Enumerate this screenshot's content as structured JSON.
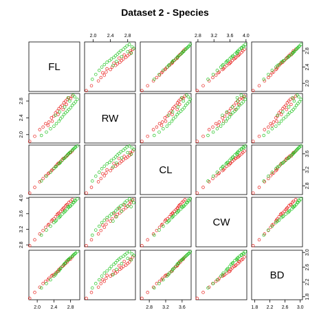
{
  "chart_data": {
    "type": "scatter",
    "chart_kind": "scatterplot-matrix",
    "title": "Dataset 2 - Species",
    "variables": [
      "FL",
      "RW",
      "CL",
      "CW",
      "BD"
    ],
    "grid": false,
    "legend": "none",
    "colors": {
      "species_1": "#e8201c",
      "species_2": "#22c422"
    },
    "axis_ranges": {
      "FL": [
        1.8,
        3.02
      ],
      "RW": [
        1.8,
        2.98
      ],
      "CL": [
        2.58,
        3.82
      ],
      "CW": [
        2.75,
        4.02
      ],
      "BD": [
        1.72,
        3.06
      ]
    },
    "ticks": {
      "FL": [
        2.0,
        2.4,
        2.8
      ],
      "RW": [
        2.0,
        2.4,
        2.8
      ],
      "CL": [
        2.8,
        3.2,
        3.6
      ],
      "CW": [
        2.8,
        3.2,
        3.6,
        4.0
      ],
      "BD": [
        1.8,
        2.2,
        2.6,
        3.0
      ]
    },
    "tick_labels": {
      "FL": [
        "2.0",
        "2.4",
        "2.8"
      ],
      "RW": [
        "2.0",
        "2.4",
        "2.8"
      ],
      "CL": [
        "2.8",
        "3.2",
        "3.6"
      ],
      "CW": [
        "2.8",
        "3.2",
        "3.6",
        "4.0"
      ],
      "BD": [
        "1.8",
        "2.2",
        "2.6",
        "3.0"
      ]
    },
    "series": [
      {
        "group": "species_1",
        "points": [
          [
            1.82,
            1.84,
            2.62,
            2.78,
            1.76
          ],
          [
            1.94,
            1.96,
            2.76,
            2.93,
            1.92
          ],
          [
            2.06,
            2.12,
            2.9,
            3.08,
            2.06
          ],
          [
            2.14,
            2.18,
            2.98,
            3.17,
            2.16
          ],
          [
            2.2,
            2.26,
            3.05,
            3.25,
            2.22
          ],
          [
            2.28,
            2.3,
            3.12,
            3.33,
            2.3
          ],
          [
            2.34,
            2.4,
            3.18,
            3.41,
            2.36
          ],
          [
            2.4,
            2.44,
            3.24,
            3.47,
            2.4
          ],
          [
            2.44,
            2.52,
            3.29,
            3.52,
            2.44
          ],
          [
            2.48,
            2.56,
            3.33,
            3.58,
            2.48
          ],
          [
            2.52,
            2.62,
            3.37,
            3.62,
            2.54
          ],
          [
            2.56,
            2.66,
            3.41,
            3.66,
            2.58
          ],
          [
            2.6,
            2.7,
            3.45,
            3.7,
            2.62
          ],
          [
            2.64,
            2.76,
            3.49,
            3.75,
            2.66
          ],
          [
            2.68,
            2.8,
            3.52,
            3.8,
            2.7
          ],
          [
            2.72,
            2.84,
            3.56,
            3.84,
            2.74
          ],
          [
            2.76,
            2.88,
            3.6,
            3.89,
            2.8
          ],
          [
            2.8,
            2.86,
            3.63,
            3.92,
            2.82
          ],
          [
            2.84,
            2.92,
            3.67,
            3.96,
            2.88
          ],
          [
            2.36,
            2.32,
            3.2,
            3.44,
            2.38
          ],
          [
            2.5,
            2.48,
            3.36,
            3.6,
            2.5
          ],
          [
            2.62,
            2.6,
            3.48,
            3.73,
            2.64
          ],
          [
            2.26,
            2.22,
            3.1,
            3.31,
            2.26
          ],
          [
            2.7,
            2.72,
            3.54,
            3.82,
            2.76
          ]
        ]
      },
      {
        "group": "species_2",
        "points": [
          [
            2.1,
            1.98,
            2.92,
            3.05,
            2.04
          ],
          [
            2.22,
            2.06,
            3.04,
            3.18,
            2.16
          ],
          [
            2.32,
            2.14,
            3.14,
            3.28,
            2.26
          ],
          [
            2.4,
            2.2,
            3.23,
            3.37,
            2.36
          ],
          [
            2.46,
            2.26,
            3.29,
            3.43,
            2.44
          ],
          [
            2.52,
            2.32,
            3.35,
            3.5,
            2.5
          ],
          [
            2.56,
            2.38,
            3.39,
            3.54,
            2.56
          ],
          [
            2.6,
            2.42,
            3.44,
            3.59,
            2.62
          ],
          [
            2.64,
            2.48,
            3.48,
            3.63,
            2.68
          ],
          [
            2.68,
            2.52,
            3.52,
            3.67,
            2.72
          ],
          [
            2.72,
            2.56,
            3.57,
            3.72,
            2.78
          ],
          [
            2.76,
            2.6,
            3.61,
            3.76,
            2.82
          ],
          [
            2.8,
            2.64,
            3.65,
            3.8,
            2.86
          ],
          [
            2.84,
            2.7,
            3.69,
            3.84,
            2.9
          ],
          [
            2.88,
            2.74,
            3.73,
            3.89,
            2.94
          ],
          [
            2.92,
            2.78,
            3.77,
            3.93,
            2.98
          ],
          [
            2.96,
            2.84,
            3.8,
            3.98,
            3.02
          ],
          [
            2.9,
            2.9,
            3.75,
            3.95,
            2.96
          ],
          [
            2.78,
            2.8,
            3.63,
            3.79,
            2.84
          ],
          [
            2.66,
            2.66,
            3.5,
            3.66,
            2.7
          ],
          [
            2.54,
            2.54,
            3.37,
            3.52,
            2.54
          ],
          [
            2.44,
            2.46,
            3.27,
            3.41,
            2.4
          ],
          [
            2.74,
            2.88,
            3.59,
            3.78,
            2.8
          ],
          [
            2.86,
            2.94,
            3.71,
            3.88,
            2.92
          ]
        ]
      }
    ]
  }
}
